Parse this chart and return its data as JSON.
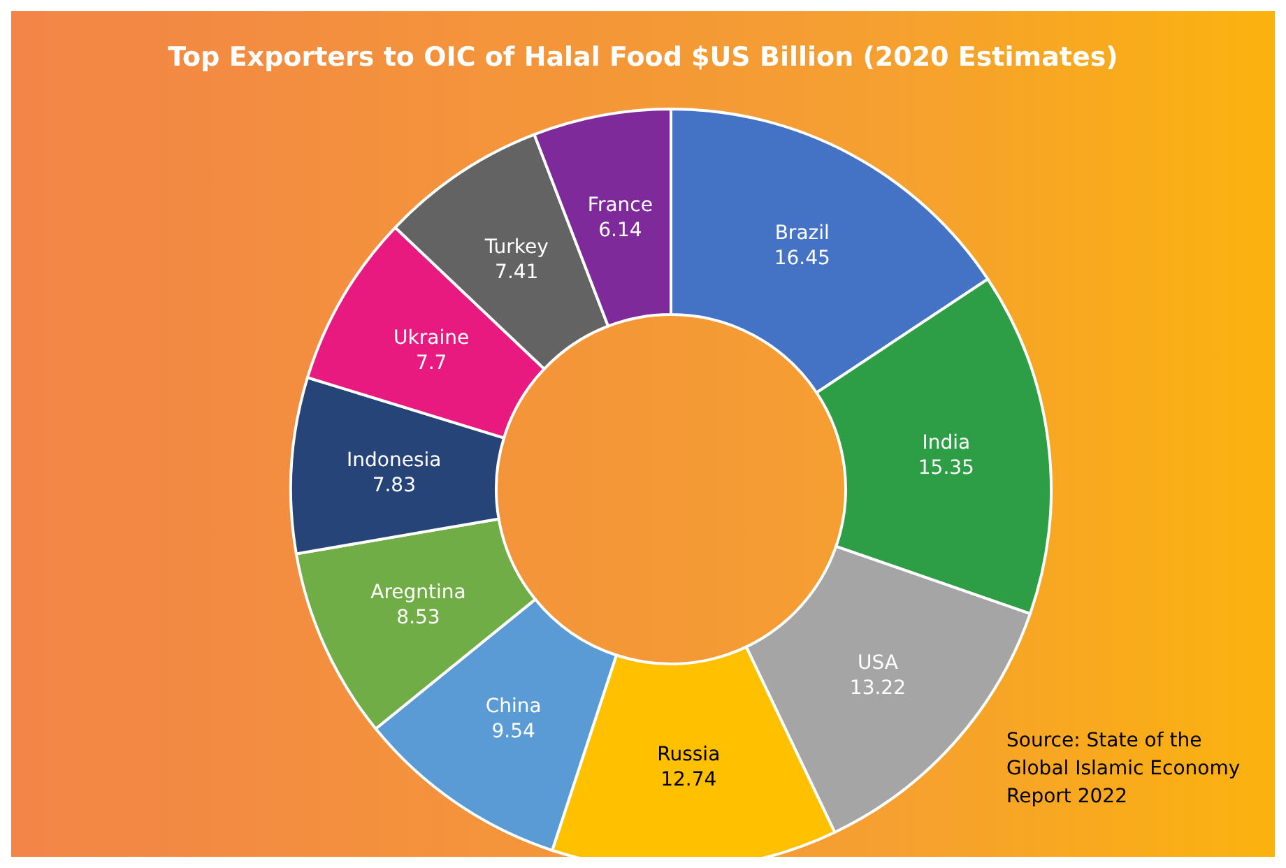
{
  "chart_data": {
    "type": "donut",
    "title": "Top Exporters to OIC of Halal Food $US Billion (2020 Estimates)",
    "categories": [
      "Brazil",
      "India",
      "USA",
      "Russia",
      "China",
      "Aregntina",
      "Indonesia",
      "Ukraine",
      "Turkey",
      "France"
    ],
    "values": [
      16.45,
      15.35,
      13.22,
      12.74,
      9.54,
      8.53,
      7.83,
      7.7,
      7.41,
      6.14
    ],
    "colors": [
      "#4472c4",
      "#2e9e46",
      "#a5a5a5",
      "#ffc000",
      "#5b9bd5",
      "#70ad47",
      "#264478",
      "#e8197f",
      "#636363",
      "#7e2a9a"
    ],
    "data_labels": true,
    "annotations": [
      "Source: State of the Global Islamic Economy Report 2022"
    ]
  }
}
